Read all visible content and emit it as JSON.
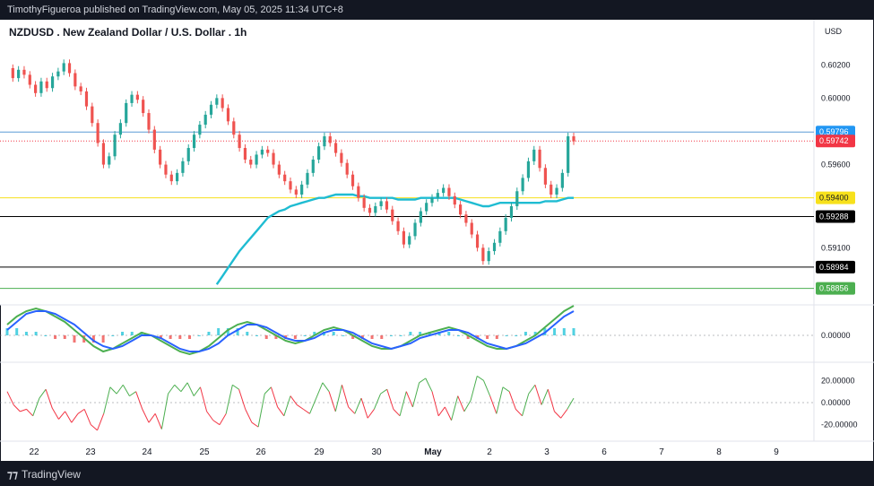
{
  "publisher_line": "TimothyFigueroa published on TradingView.com, May 05, 2025 11:34 UTC+8",
  "brand": "TradingView",
  "brand_icon": "tradingview-logo-icon",
  "chart_data": [
    {
      "type": "candlestick",
      "title": "NZDUSD . New Zealand Dollar / U.S. Dollar . 1h",
      "currency_label": "USD",
      "ylim": [
        0.588,
        0.6032
      ],
      "y_ticks": [
        "0.60200",
        "0.60000",
        "0.59600",
        "0.59100"
      ],
      "x_ticks": [
        "22",
        "23",
        "24",
        "25",
        "26",
        "29",
        "30",
        "May",
        "2",
        "3",
        "6",
        "7",
        "8",
        "9"
      ],
      "price_tags": [
        {
          "value": 0.59796,
          "label": "0.59796",
          "color": "#2196f3"
        },
        {
          "value": 0.59742,
          "label": "0.59742",
          "color": "#f23645"
        },
        {
          "value": 0.594,
          "label": "0.59400",
          "color": "#f7e11c"
        },
        {
          "value": 0.59288,
          "label": "0.59288",
          "color": "#000000"
        },
        {
          "value": 0.58984,
          "label": "0.58984",
          "color": "#000000"
        },
        {
          "value": 0.58856,
          "label": "0.58856",
          "color": "#4caf50"
        }
      ],
      "horizontal_lines": [
        {
          "value": 0.59796,
          "color": "#5b9bd5",
          "style": "solid"
        },
        {
          "value": 0.59742,
          "color": "#f23645",
          "style": "dotted"
        },
        {
          "value": 0.594,
          "color": "#f7e11c",
          "style": "solid"
        },
        {
          "value": 0.59288,
          "color": "#000000",
          "style": "solid"
        },
        {
          "value": 0.58984,
          "color": "#000000",
          "style": "solid"
        },
        {
          "value": 0.58856,
          "color": "#4caf50",
          "style": "solid"
        }
      ],
      "close_path": [
        0.6018,
        0.6012,
        0.6017,
        0.6014,
        0.6008,
        0.6003,
        0.601,
        0.6006,
        0.6013,
        0.6016,
        0.6021,
        0.6015,
        0.6007,
        0.6004,
        0.5995,
        0.5985,
        0.5973,
        0.596,
        0.5965,
        0.5978,
        0.5985,
        0.5997,
        0.6002,
        0.5999,
        0.5991,
        0.5981,
        0.5969,
        0.596,
        0.5954,
        0.595,
        0.5955,
        0.5962,
        0.597,
        0.5978,
        0.5984,
        0.599,
        0.5996,
        0.6,
        0.5994,
        0.5986,
        0.5978,
        0.597,
        0.5963,
        0.596,
        0.5966,
        0.5969,
        0.5967,
        0.596,
        0.5954,
        0.595,
        0.5945,
        0.5942,
        0.5948,
        0.5955,
        0.5963,
        0.5971,
        0.5977,
        0.5973,
        0.5967,
        0.5961,
        0.5954,
        0.5947,
        0.594,
        0.5934,
        0.5931,
        0.5935,
        0.5938,
        0.5933,
        0.5926,
        0.592,
        0.5912,
        0.5917,
        0.5925,
        0.5932,
        0.5937,
        0.594,
        0.5943,
        0.5946,
        0.5941,
        0.5936,
        0.593,
        0.5925,
        0.5918,
        0.591,
        0.5902,
        0.5908,
        0.5913,
        0.592,
        0.5928,
        0.5935,
        0.5944,
        0.5952,
        0.5962,
        0.5969,
        0.5958,
        0.5948,
        0.5942,
        0.5946,
        0.5955,
        0.5977,
        0.5974
      ],
      "ema_path": [
        null,
        null,
        null,
        null,
        null,
        null,
        null,
        null,
        null,
        null,
        null,
        null,
        null,
        null,
        null,
        null,
        null,
        null,
        null,
        null,
        null,
        null,
        null,
        null,
        null,
        null,
        null,
        null,
        null,
        null,
        null,
        null,
        null,
        null,
        null,
        null,
        null,
        0.5888,
        0.5893,
        0.5898,
        0.5903,
        0.5908,
        0.5912,
        0.5916,
        0.592,
        0.5924,
        0.5928,
        0.593,
        0.5932,
        0.5933,
        0.5935,
        0.5936,
        0.5937,
        0.5938,
        0.5939,
        0.594,
        0.594,
        0.5941,
        0.5942,
        0.5942,
        0.5942,
        0.5942,
        0.5941,
        0.5941,
        0.594,
        0.594,
        0.594,
        0.594,
        0.594,
        0.5939,
        0.5939,
        0.5939,
        0.5939,
        0.594,
        0.594,
        0.594,
        0.594,
        0.594,
        0.594,
        0.594,
        0.5939,
        0.5938,
        0.5937,
        0.5936,
        0.5935,
        0.5935,
        0.5936,
        0.5937,
        0.5937,
        0.5937,
        0.5937,
        0.5937,
        0.5937,
        0.5937,
        0.5937,
        0.5938,
        0.5938,
        0.5938,
        0.5939,
        0.594,
        0.594
      ],
      "ema_color": "#1fbcd2"
    },
    {
      "type": "line",
      "pane": "oscillator-1",
      "y_ticks": [
        "0.00000"
      ],
      "series": [
        {
          "color": "#4caf50",
          "values": [
            0.4,
            0.7,
            0.9,
            1.0,
            0.9,
            0.7,
            0.5,
            0.2,
            -0.1,
            -0.4,
            -0.6,
            -0.5,
            -0.3,
            -0.1,
            0.1,
            0.0,
            -0.2,
            -0.4,
            -0.6,
            -0.7,
            -0.6,
            -0.4,
            -0.1,
            0.2,
            0.4,
            0.5,
            0.4,
            0.2,
            0.0,
            -0.2,
            -0.3,
            -0.2,
            0.0,
            0.2,
            0.3,
            0.2,
            0.0,
            -0.2,
            -0.4,
            -0.5,
            -0.5,
            -0.4,
            -0.2,
            0.0,
            0.1,
            0.2,
            0.3,
            0.2,
            0.0,
            -0.2,
            -0.4,
            -0.5,
            -0.5,
            -0.4,
            -0.2,
            0.0,
            0.3,
            0.6,
            0.9,
            1.1
          ]
        },
        {
          "color": "#2962ff",
          "values": [
            0.2,
            0.5,
            0.8,
            0.9,
            0.9,
            0.8,
            0.6,
            0.4,
            0.1,
            -0.2,
            -0.4,
            -0.5,
            -0.4,
            -0.2,
            0.0,
            0.0,
            -0.1,
            -0.3,
            -0.5,
            -0.6,
            -0.6,
            -0.5,
            -0.3,
            0.0,
            0.2,
            0.4,
            0.4,
            0.3,
            0.1,
            -0.1,
            -0.2,
            -0.2,
            -0.1,
            0.1,
            0.2,
            0.2,
            0.1,
            -0.1,
            -0.3,
            -0.4,
            -0.5,
            -0.4,
            -0.3,
            -0.1,
            0.0,
            0.1,
            0.2,
            0.2,
            0.1,
            -0.1,
            -0.3,
            -0.4,
            -0.5,
            -0.4,
            -0.3,
            -0.1,
            0.1,
            0.4,
            0.7,
            0.9
          ]
        }
      ]
    },
    {
      "type": "line",
      "pane": "oscillator-2",
      "y_ticks": [
        "20.00000",
        "0.00000",
        "-20.00000"
      ],
      "ylim": [
        -30,
        30
      ],
      "series": [
        {
          "colors": [
            "#4caf50",
            "#f23645"
          ],
          "values": [
            10,
            -2,
            -8,
            -6,
            -12,
            4,
            12,
            -5,
            -15,
            -8,
            -18,
            -10,
            -6,
            -20,
            -25,
            -10,
            14,
            8,
            16,
            6,
            10,
            -6,
            -18,
            -10,
            -24,
            8,
            16,
            10,
            18,
            6,
            14,
            -8,
            -16,
            -20,
            -10,
            16,
            12,
            -6,
            -18,
            -22,
            8,
            14,
            -4,
            -12,
            6,
            -2,
            -6,
            -10,
            4,
            18,
            10,
            -8,
            16,
            -4,
            -10,
            4,
            -14,
            -6,
            8,
            12,
            -6,
            -12,
            10,
            -4,
            18,
            22,
            10,
            -12,
            -4,
            -16,
            6,
            -8,
            2,
            24,
            20,
            6,
            -10,
            14,
            10,
            -6,
            -12,
            8,
            16,
            -2,
            12,
            -8,
            -14,
            -6,
            4
          ]
        }
      ]
    }
  ]
}
